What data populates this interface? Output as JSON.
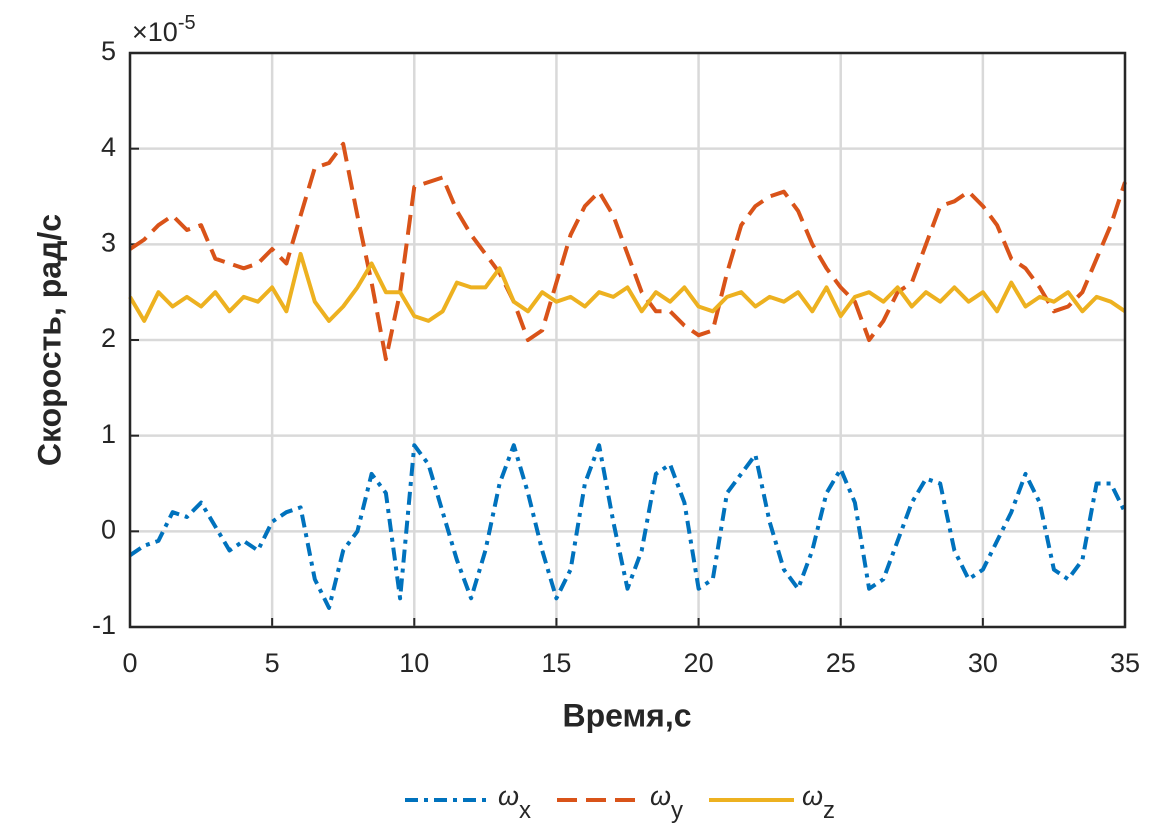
{
  "chart_data": {
    "type": "line",
    "xlabel": "Время,с",
    "ylabel": "Скорость, рад/с",
    "y_multiplier": {
      "base": "×10",
      "exponent": "-5"
    },
    "xlim": [
      0,
      35
    ],
    "xticks": [
      0,
      5,
      10,
      15,
      20,
      25,
      30,
      35
    ],
    "ylim": [
      -1,
      5
    ],
    "yticks": [
      -1,
      0,
      1,
      2,
      3,
      4,
      5
    ],
    "grid": true,
    "legend": "bottom",
    "x": [
      0,
      0.5,
      1,
      1.5,
      2,
      2.5,
      3,
      3.5,
      4,
      4.5,
      5,
      5.5,
      6,
      6.5,
      7,
      7.5,
      8,
      8.5,
      9,
      9.5,
      10,
      10.5,
      11,
      11.5,
      12,
      12.5,
      13,
      13.5,
      14,
      14.5,
      15,
      15.5,
      16,
      16.5,
      17,
      17.5,
      18,
      18.5,
      19,
      19.5,
      20,
      20.5,
      21,
      21.5,
      22,
      22.5,
      23,
      23.5,
      24,
      24.5,
      25,
      25.5,
      26,
      26.5,
      27,
      27.5,
      28,
      28.5,
      29,
      29.5,
      30,
      30.5,
      31,
      31.5,
      32,
      32.5,
      33,
      33.5,
      34,
      34.5,
      35
    ],
    "series": [
      {
        "name": "ω",
        "subscript": "x",
        "color": "#0072BD",
        "dash": "dashdot",
        "values": [
          -0.25,
          -0.15,
          -0.1,
          0.2,
          0.15,
          0.3,
          0.05,
          -0.2,
          -0.1,
          -0.2,
          0.1,
          0.2,
          0.25,
          -0.5,
          -0.8,
          -0.2,
          0,
          0.6,
          0.4,
          -0.7,
          0.9,
          0.7,
          0.2,
          -0.3,
          -0.7,
          -0.2,
          0.5,
          0.9,
          0.4,
          -0.2,
          -0.7,
          -0.4,
          0.5,
          0.9,
          0.1,
          -0.6,
          -0.2,
          0.6,
          0.7,
          0.3,
          -0.6,
          -0.5,
          0.4,
          0.6,
          0.8,
          0.1,
          -0.4,
          -0.6,
          -0.2,
          0.4,
          0.65,
          0.3,
          -0.6,
          -0.5,
          -0.1,
          0.3,
          0.55,
          0.5,
          -0.2,
          -0.5,
          -0.4,
          -0.1,
          0.2,
          0.6,
          0.3,
          -0.4,
          -0.5,
          -0.3,
          0.5,
          0.5,
          0.2
        ]
      },
      {
        "name": "ω",
        "subscript": "y",
        "color": "#D95319",
        "dash": "dashed",
        "values": [
          2.95,
          3.05,
          3.2,
          3.3,
          3.15,
          3.2,
          2.85,
          2.8,
          2.75,
          2.8,
          2.95,
          2.8,
          3.3,
          3.8,
          3.85,
          4.05,
          3.3,
          2.6,
          1.8,
          2.5,
          3.6,
          3.65,
          3.7,
          3.35,
          3.1,
          2.9,
          2.7,
          2.4,
          2.0,
          2.1,
          2.6,
          3.1,
          3.4,
          3.55,
          3.3,
          2.9,
          2.5,
          2.3,
          2.3,
          2.15,
          2.05,
          2.1,
          2.7,
          3.2,
          3.4,
          3.5,
          3.55,
          3.35,
          3.0,
          2.75,
          2.55,
          2.4,
          2.0,
          2.2,
          2.5,
          2.6,
          3.0,
          3.4,
          3.45,
          3.55,
          3.4,
          3.2,
          2.85,
          2.75,
          2.55,
          2.3,
          2.35,
          2.5,
          2.85,
          3.2,
          3.65
        ]
      },
      {
        "name": "ω",
        "subscript": "z",
        "color": "#EDB120",
        "dash": "solid",
        "values": [
          2.45,
          2.2,
          2.5,
          2.35,
          2.45,
          2.35,
          2.5,
          2.3,
          2.45,
          2.4,
          2.55,
          2.3,
          2.9,
          2.4,
          2.2,
          2.35,
          2.55,
          2.8,
          2.5,
          2.5,
          2.25,
          2.2,
          2.3,
          2.6,
          2.55,
          2.55,
          2.75,
          2.4,
          2.3,
          2.5,
          2.4,
          2.45,
          2.35,
          2.5,
          2.45,
          2.55,
          2.3,
          2.5,
          2.4,
          2.55,
          2.35,
          2.3,
          2.45,
          2.5,
          2.35,
          2.45,
          2.4,
          2.5,
          2.3,
          2.55,
          2.25,
          2.45,
          2.5,
          2.4,
          2.55,
          2.35,
          2.5,
          2.4,
          2.55,
          2.4,
          2.5,
          2.3,
          2.6,
          2.35,
          2.45,
          2.4,
          2.5,
          2.3,
          2.45,
          2.4,
          2.3
        ]
      }
    ]
  }
}
